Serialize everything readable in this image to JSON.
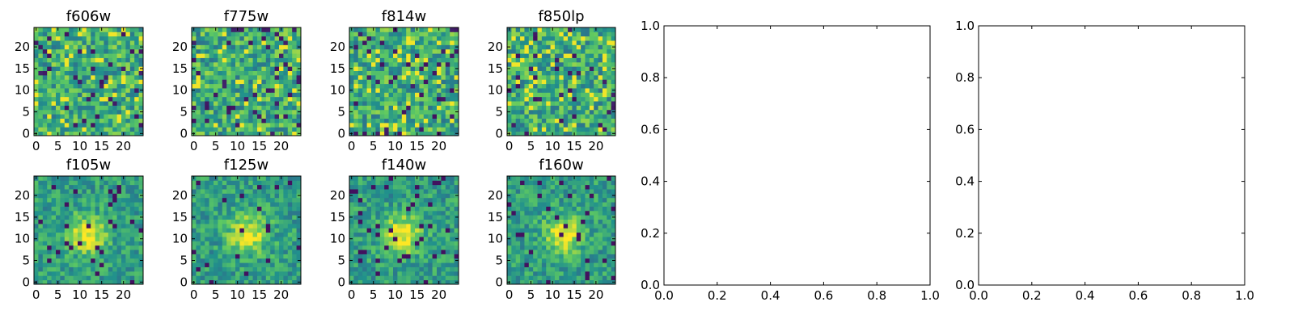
{
  "chart_data": [
    {
      "type": "heatmap",
      "title": "f606w",
      "x_ticks": [
        "0",
        "5",
        "10",
        "15",
        "20"
      ],
      "y_ticks": [
        "0",
        "5",
        "10",
        "15",
        "20"
      ],
      "xlim": [
        -0.5,
        24.5
      ],
      "ylim": [
        -0.5,
        24.5
      ],
      "grid_size": 25,
      "pattern": "noise",
      "colormap": "viridis"
    },
    {
      "type": "heatmap",
      "title": "f775w",
      "x_ticks": [
        "0",
        "5",
        "10",
        "15",
        "20"
      ],
      "y_ticks": [
        "0",
        "5",
        "10",
        "15",
        "20"
      ],
      "xlim": [
        -0.5,
        24.5
      ],
      "ylim": [
        -0.5,
        24.5
      ],
      "grid_size": 25,
      "pattern": "noise",
      "colormap": "viridis"
    },
    {
      "type": "heatmap",
      "title": "f814w",
      "x_ticks": [
        "0",
        "5",
        "10",
        "15",
        "20"
      ],
      "y_ticks": [
        "0",
        "5",
        "10",
        "15",
        "20"
      ],
      "xlim": [
        -0.5,
        24.5
      ],
      "ylim": [
        -0.5,
        24.5
      ],
      "grid_size": 25,
      "pattern": "noise",
      "colormap": "viridis"
    },
    {
      "type": "heatmap",
      "title": "f850lp",
      "x_ticks": [
        "0",
        "5",
        "10",
        "15",
        "20"
      ],
      "y_ticks": [
        "0",
        "5",
        "10",
        "15",
        "20"
      ],
      "xlim": [
        -0.5,
        24.5
      ],
      "ylim": [
        -0.5,
        24.5
      ],
      "grid_size": 25,
      "pattern": "noise",
      "colormap": "viridis"
    },
    {
      "type": "heatmap",
      "title": "f105w",
      "x_ticks": [
        "0",
        "5",
        "10",
        "15",
        "20"
      ],
      "y_ticks": [
        "0",
        "5",
        "10",
        "15",
        "20"
      ],
      "xlim": [
        -0.5,
        24.5
      ],
      "ylim": [
        -0.5,
        24.5
      ],
      "grid_size": 25,
      "pattern": "source",
      "colormap": "viridis"
    },
    {
      "type": "heatmap",
      "title": "f125w",
      "x_ticks": [
        "0",
        "5",
        "10",
        "15",
        "20"
      ],
      "y_ticks": [
        "0",
        "5",
        "10",
        "15",
        "20"
      ],
      "xlim": [
        -0.5,
        24.5
      ],
      "ylim": [
        -0.5,
        24.5
      ],
      "grid_size": 25,
      "pattern": "source",
      "colormap": "viridis"
    },
    {
      "type": "heatmap",
      "title": "f140w",
      "x_ticks": [
        "0",
        "5",
        "10",
        "15",
        "20"
      ],
      "y_ticks": [
        "0",
        "5",
        "10",
        "15",
        "20"
      ],
      "xlim": [
        -0.5,
        24.5
      ],
      "ylim": [
        -0.5,
        24.5
      ],
      "grid_size": 25,
      "pattern": "source",
      "colormap": "viridis"
    },
    {
      "type": "heatmap",
      "title": "f160w",
      "x_ticks": [
        "0",
        "5",
        "10",
        "15",
        "20"
      ],
      "y_ticks": [
        "0",
        "5",
        "10",
        "15",
        "20"
      ],
      "xlim": [
        -0.5,
        24.5
      ],
      "ylim": [
        -0.5,
        24.5
      ],
      "grid_size": 25,
      "pattern": "source",
      "colormap": "viridis"
    },
    {
      "type": "scatter",
      "title": "",
      "x_ticks": [
        "0.0",
        "0.2",
        "0.4",
        "0.6",
        "0.8",
        "1.0"
      ],
      "y_ticks": [
        "0.0",
        "0.2",
        "0.4",
        "0.6",
        "0.8",
        "1.0"
      ],
      "xlim": [
        0,
        1
      ],
      "ylim": [
        0,
        1
      ]
    },
    {
      "type": "scatter",
      "title": "",
      "x_ticks": [
        "0.0",
        "0.2",
        "0.4",
        "0.6",
        "0.8",
        "1.0"
      ],
      "y_ticks": [
        "0.0",
        "0.2",
        "0.4",
        "0.6",
        "0.8",
        "1.0"
      ],
      "xlim": [
        0,
        1
      ],
      "ylim": [
        0,
        1
      ]
    }
  ]
}
